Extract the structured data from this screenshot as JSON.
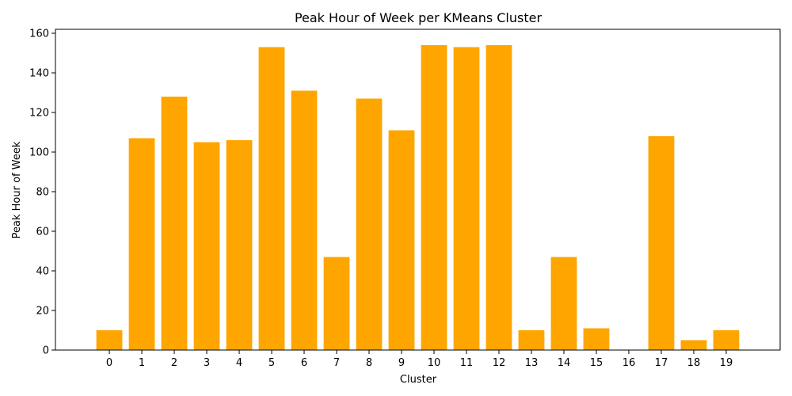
{
  "chart_data": {
    "type": "bar",
    "title": "Peak Hour of Week per KMeans Cluster",
    "xlabel": "Cluster",
    "ylabel": "Peak Hour of Week",
    "categories": [
      "0",
      "1",
      "2",
      "3",
      "4",
      "5",
      "6",
      "7",
      "8",
      "9",
      "10",
      "11",
      "12",
      "13",
      "14",
      "15",
      "16",
      "17",
      "18",
      "19"
    ],
    "values": [
      10,
      107,
      128,
      105,
      106,
      153,
      131,
      47,
      127,
      111,
      154,
      153,
      154,
      10,
      47,
      11,
      0,
      108,
      5,
      10
    ],
    "ylim": [
      0,
      162
    ],
    "yticks": [
      0,
      20,
      40,
      60,
      80,
      100,
      120,
      140,
      160
    ],
    "bar_color": "#ffa500",
    "grid": false,
    "legend": "none"
  }
}
